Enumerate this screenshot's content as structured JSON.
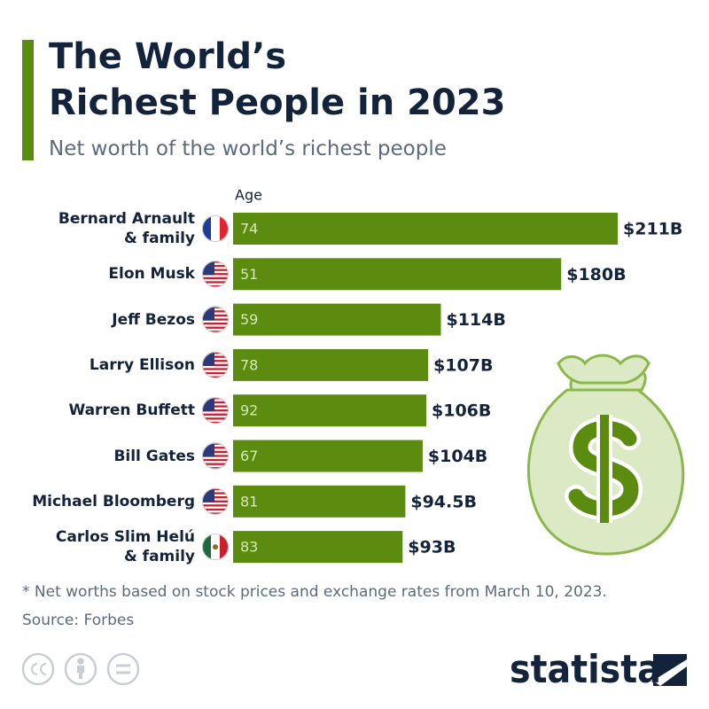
{
  "chart_data": {
    "type": "bar",
    "orientation": "horizontal",
    "title": "The World’s\nRichest People in 2023",
    "subtitle": "Net worth of the world’s richest people",
    "age_label": "Age",
    "categories": [
      "Bernard Arnault\n& family",
      "Elon Musk",
      "Jeff Bezos",
      "Larry Ellison",
      "Warren Buffett",
      "Bill Gates",
      "Michael Bloomberg",
      "Carlos Slim Helú\n& family"
    ],
    "ages": [
      74,
      51,
      59,
      78,
      92,
      67,
      81,
      83
    ],
    "values": [
      211,
      180,
      114,
      107,
      106,
      104,
      94.5,
      93
    ],
    "value_labels": [
      "$211B",
      "$180B",
      "$114B",
      "$107B",
      "$106B",
      "$104B",
      "$94.5B",
      "$93B"
    ],
    "color": "#5b8c10",
    "footnote": "* Net worths based on stock prices and exchange rates from March 10, 2023.",
    "source": "Source: Forbes",
    "brand": "statista"
  }
}
